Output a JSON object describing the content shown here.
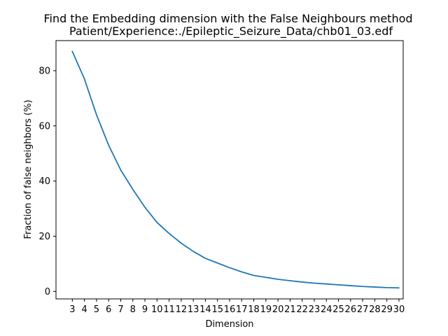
{
  "chart_data": {
    "type": "line",
    "title_lines": [
      "Find the Embedding dimension with the False Neighbours method",
      "Patient/Experience:./Epileptic_Seizure_Data/chb01_03.edf"
    ],
    "xlabel": "Dimension",
    "ylabel": "Fraction of false neighbors (%)",
    "xlim": [
      1.65,
      30.35
    ],
    "ylim": [
      -2.7,
      90.9
    ],
    "x_ticks": [
      "3",
      "4",
      "5",
      "6",
      "7",
      "8",
      "9",
      "10",
      "11",
      "12",
      "13",
      "14",
      "15",
      "16",
      "17",
      "18",
      "19",
      "20",
      "21",
      "22",
      "23",
      "24",
      "25",
      "26",
      "27",
      "28",
      "29",
      "30"
    ],
    "y_ticks": [
      "0",
      "20",
      "40",
      "60",
      "80"
    ],
    "grid": false,
    "series": [
      {
        "color": "#1f77b4",
        "x": [
          3,
          4,
          5,
          6,
          7,
          8,
          9,
          10,
          11,
          12,
          13,
          14,
          15,
          16,
          17,
          18,
          19,
          20,
          21,
          22,
          23,
          24,
          25,
          26,
          27,
          28,
          29,
          30
        ],
        "values": [
          87.0,
          77.0,
          64.0,
          53.0,
          44.0,
          37.0,
          30.5,
          25.0,
          21.0,
          17.5,
          14.5,
          12.0,
          10.3,
          8.6,
          7.1,
          5.8,
          5.1,
          4.4,
          3.9,
          3.4,
          3.0,
          2.7,
          2.4,
          2.1,
          1.8,
          1.6,
          1.4,
          1.3
        ]
      }
    ]
  }
}
